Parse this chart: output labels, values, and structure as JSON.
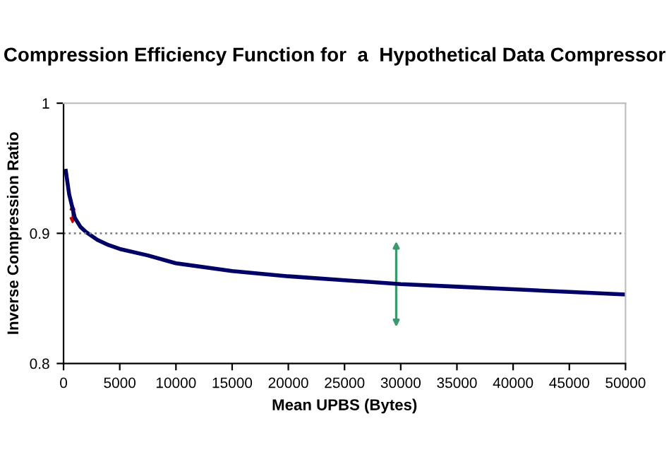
{
  "chart_data": {
    "type": "line",
    "title": "Compression Efficiency Function for  a  Hypothetical Data Compressor",
    "xlabel": "Mean UPBS (Bytes)",
    "ylabel": "Inverse Compression Ratio",
    "x": [
      200,
      500,
      1000,
      1500,
      2000,
      3000,
      4000,
      5000,
      7500,
      10000,
      15000,
      20000,
      25000,
      30000,
      35000,
      40000,
      45000,
      50000
    ],
    "series": [
      {
        "color": "#000066",
        "values": [
          0.948,
          0.93,
          0.912,
          0.905,
          0.901,
          0.895,
          0.891,
          0.888,
          0.883,
          0.877,
          0.871,
          0.867,
          0.864,
          0.861,
          0.859,
          0.857,
          0.855,
          0.853
        ]
      }
    ],
    "xlim": [
      0,
      50000
    ],
    "xticks": [
      0,
      5000,
      10000,
      15000,
      20000,
      25000,
      30000,
      35000,
      40000,
      45000,
      50000
    ],
    "ylim": [
      0.8,
      1
    ],
    "yticks": [
      0.8,
      0.9,
      1
    ],
    "ref_lines": [
      {
        "axis": "y",
        "value": 0.9,
        "color": "#808080",
        "line_style": "dotted"
      }
    ],
    "grid": false,
    "legend": false,
    "marker": "none",
    "line_style": "solid"
  }
}
